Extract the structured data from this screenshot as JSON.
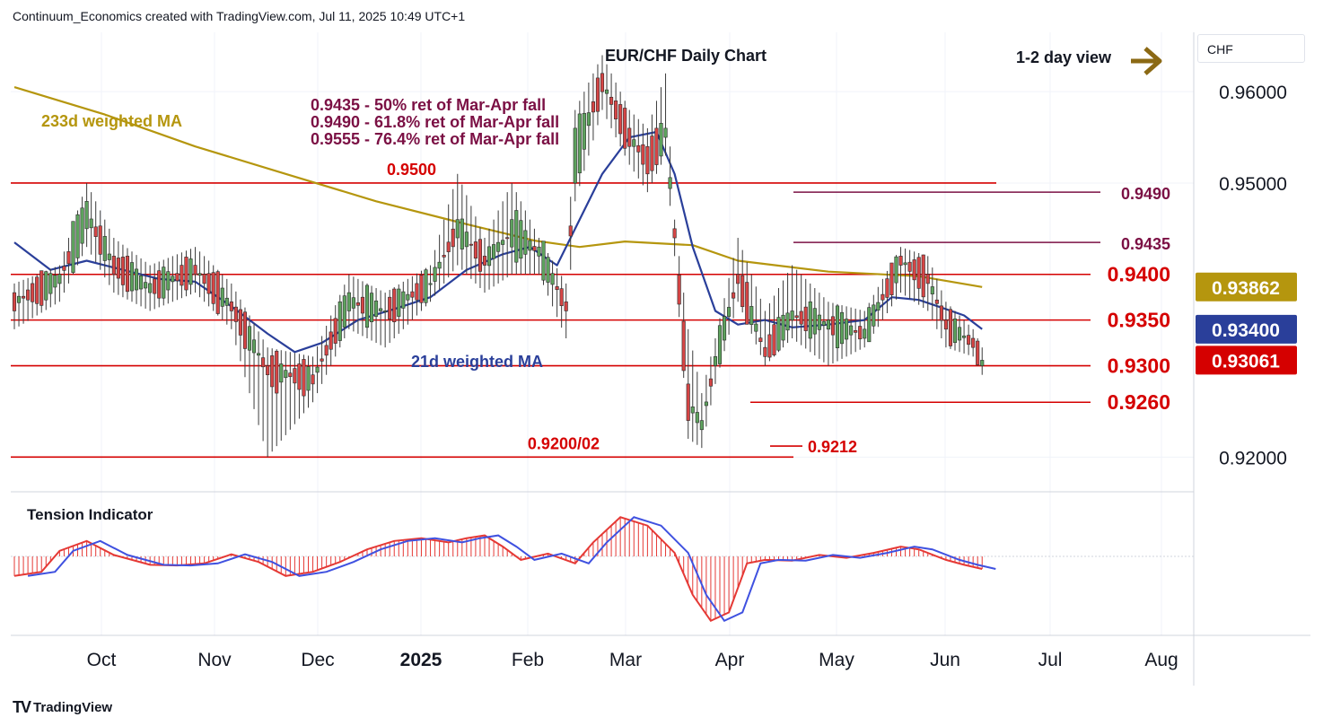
{
  "header": {
    "attribution": "Continuum_Economics created with TradingView.com, Jul 11, 2025 10:49 UTC+1"
  },
  "footer": {
    "brand": "TradingView"
  },
  "currency_box": "CHF",
  "colors": {
    "level_line": "#d50000",
    "fib_line": "#7b1044",
    "ma233": "#b5960e",
    "ma21": "#2a3f9a",
    "bull": "#5ea35e",
    "bear": "#d64545",
    "tension_fill": "#e53935",
    "tension_signal": "#3f51e0",
    "arrow": "#8b6914"
  },
  "chart_data": {
    "type": "candlestick",
    "title": "EUR/CHF Daily Chart",
    "view_label": "1-2 day view",
    "fib_notes": [
      "0.9435 - 50% ret of Mar-Apr fall",
      "0.9490 - 61.8% ret of Mar-Apr fall",
      "0.9555 - 76.4% ret of Mar-Apr fall"
    ],
    "ma_labels": {
      "ma233": "233d weighted MA",
      "ma21": "21d weighted MA"
    },
    "y_range": [
      0.9162,
      0.9665
    ],
    "y_ticks": [
      {
        "value": 0.92,
        "label": "0.92000"
      },
      {
        "value": 0.95,
        "label": "0.95000"
      },
      {
        "value": 0.96,
        "label": "0.96000"
      }
    ],
    "x_ticks": [
      "Oct",
      "Nov",
      "Dec",
      "2025",
      "Feb",
      "Mar",
      "Apr",
      "May",
      "Jun",
      "Jul",
      "Aug"
    ],
    "levels": [
      {
        "value": 0.95,
        "label": "0.9500",
        "style": "red"
      },
      {
        "value": 0.949,
        "label": "0.9490",
        "style": "fib"
      },
      {
        "value": 0.9435,
        "label": "0.9435",
        "style": "fib"
      },
      {
        "value": 0.94,
        "label": "0.9400",
        "style": "red"
      },
      {
        "value": 0.935,
        "label": "0.9350",
        "style": "red"
      },
      {
        "value": 0.93,
        "label": "0.9300",
        "style": "red"
      },
      {
        "value": 0.926,
        "label": "0.9260",
        "style": "red"
      },
      {
        "value": 0.9212,
        "label": "0.9212",
        "style": "red"
      },
      {
        "value": 0.92,
        "label": "0.9200/02",
        "style": "red"
      }
    ],
    "price_tags": [
      {
        "name": "ma233",
        "value": 0.93862,
        "label": "0.93862"
      },
      {
        "name": "ma21",
        "value": 0.934,
        "label": "0.93400"
      },
      {
        "name": "last",
        "value": 0.93061,
        "label": "0.93061"
      }
    ],
    "anchors": [
      {
        "t": 0,
        "o": 0.938,
        "c": 0.936,
        "h": 0.939,
        "l": 0.934
      },
      {
        "t": 10,
        "o": 0.939,
        "c": 0.94,
        "h": 0.941,
        "l": 0.937
      },
      {
        "t": 16,
        "o": 0.945,
        "c": 0.948,
        "h": 0.95,
        "l": 0.943
      },
      {
        "t": 22,
        "o": 0.942,
        "c": 0.94,
        "h": 0.944,
        "l": 0.938
      },
      {
        "t": 30,
        "o": 0.938,
        "c": 0.939,
        "h": 0.941,
        "l": 0.936
      },
      {
        "t": 40,
        "o": 0.941,
        "c": 0.94,
        "h": 0.943,
        "l": 0.938
      },
      {
        "t": 48,
        "o": 0.937,
        "c": 0.936,
        "h": 0.939,
        "l": 0.934
      },
      {
        "t": 56,
        "o": 0.93,
        "c": 0.929,
        "h": 0.932,
        "l": 0.92
      },
      {
        "t": 66,
        "o": 0.929,
        "c": 0.928,
        "h": 0.931,
        "l": 0.926
      },
      {
        "t": 74,
        "o": 0.936,
        "c": 0.938,
        "h": 0.94,
        "l": 0.934
      },
      {
        "t": 82,
        "o": 0.936,
        "c": 0.936,
        "h": 0.938,
        "l": 0.932
      },
      {
        "t": 92,
        "o": 0.939,
        "c": 0.939,
        "h": 0.941,
        "l": 0.937
      },
      {
        "t": 98,
        "o": 0.944,
        "c": 0.946,
        "h": 0.951,
        "l": 0.941
      },
      {
        "t": 104,
        "o": 0.942,
        "c": 0.941,
        "h": 0.944,
        "l": 0.938
      },
      {
        "t": 110,
        "o": 0.943,
        "c": 0.946,
        "h": 0.95,
        "l": 0.94
      },
      {
        "t": 116,
        "o": 0.942,
        "c": 0.943,
        "h": 0.944,
        "l": 0.94
      },
      {
        "t": 122,
        "o": 0.937,
        "c": 0.936,
        "h": 0.939,
        "l": 0.933
      },
      {
        "t": 124,
        "o": 0.95,
        "c": 0.956,
        "h": 0.958,
        "l": 0.948
      },
      {
        "t": 130,
        "o": 0.962,
        "c": 0.96,
        "h": 0.964,
        "l": 0.958
      },
      {
        "t": 136,
        "o": 0.956,
        "c": 0.954,
        "h": 0.958,
        "l": 0.952
      },
      {
        "t": 140,
        "o": 0.954,
        "c": 0.951,
        "h": 0.956,
        "l": 0.949
      },
      {
        "t": 144,
        "o": 0.955,
        "c": 0.956,
        "h": 0.962,
        "l": 0.953
      },
      {
        "t": 146,
        "o": 0.945,
        "c": 0.944,
        "h": 0.946,
        "l": 0.942
      },
      {
        "t": 149,
        "o": 0.928,
        "c": 0.924,
        "h": 0.934,
        "l": 0.922
      },
      {
        "t": 152,
        "o": 0.923,
        "c": 0.924,
        "h": 0.927,
        "l": 0.921
      },
      {
        "t": 155,
        "o": 0.93,
        "c": 0.931,
        "h": 0.933,
        "l": 0.928
      },
      {
        "t": 160,
        "o": 0.94,
        "c": 0.939,
        "h": 0.944,
        "l": 0.937
      },
      {
        "t": 166,
        "o": 0.932,
        "c": 0.931,
        "h": 0.936,
        "l": 0.93
      },
      {
        "t": 172,
        "o": 0.935,
        "c": 0.936,
        "h": 0.941,
        "l": 0.933
      },
      {
        "t": 180,
        "o": 0.934,
        "c": 0.935,
        "h": 0.937,
        "l": 0.93
      },
      {
        "t": 188,
        "o": 0.933,
        "c": 0.934,
        "h": 0.936,
        "l": 0.932
      },
      {
        "t": 196,
        "o": 0.942,
        "c": 0.941,
        "h": 0.943,
        "l": 0.938
      },
      {
        "t": 202,
        "o": 0.94,
        "c": 0.939,
        "h": 0.942,
        "l": 0.936
      },
      {
        "t": 206,
        "o": 0.935,
        "c": 0.934,
        "h": 0.937,
        "l": 0.932
      },
      {
        "t": 212,
        "o": 0.933,
        "c": 0.932,
        "h": 0.934,
        "l": 0.931
      },
      {
        "t": 214,
        "o": 0.93,
        "c": 0.9306,
        "h": 0.932,
        "l": 0.929
      }
    ],
    "ma233_points": [
      [
        0,
        0.9605
      ],
      [
        20,
        0.9575
      ],
      [
        40,
        0.954
      ],
      [
        60,
        0.951
      ],
      [
        80,
        0.948
      ],
      [
        100,
        0.9455
      ],
      [
        115,
        0.9437
      ],
      [
        125,
        0.943
      ],
      [
        135,
        0.9436
      ],
      [
        150,
        0.9432
      ],
      [
        160,
        0.9415
      ],
      [
        180,
        0.9403
      ],
      [
        200,
        0.9398
      ],
      [
        214,
        0.93862
      ]
    ],
    "ma21_points": [
      [
        0,
        0.9435
      ],
      [
        8,
        0.9405
      ],
      [
        16,
        0.9415
      ],
      [
        24,
        0.9405
      ],
      [
        32,
        0.9395
      ],
      [
        40,
        0.9392
      ],
      [
        48,
        0.9365
      ],
      [
        56,
        0.9335
      ],
      [
        62,
        0.9315
      ],
      [
        68,
        0.9325
      ],
      [
        76,
        0.935
      ],
      [
        84,
        0.9362
      ],
      [
        92,
        0.9375
      ],
      [
        100,
        0.9405
      ],
      [
        108,
        0.9422
      ],
      [
        114,
        0.943
      ],
      [
        120,
        0.941
      ],
      [
        124,
        0.945
      ],
      [
        130,
        0.951
      ],
      [
        136,
        0.955
      ],
      [
        142,
        0.9556
      ],
      [
        146,
        0.951
      ],
      [
        150,
        0.943
      ],
      [
        155,
        0.936
      ],
      [
        160,
        0.9345
      ],
      [
        166,
        0.935
      ],
      [
        172,
        0.9342
      ],
      [
        180,
        0.9345
      ],
      [
        188,
        0.935
      ],
      [
        194,
        0.9375
      ],
      [
        200,
        0.9372
      ],
      [
        206,
        0.9362
      ],
      [
        210,
        0.9355
      ],
      [
        214,
        0.934
      ]
    ],
    "tension": {
      "label": "Tension Indicator",
      "range": [
        -1,
        1
      ],
      "points": [
        [
          0,
          -0.28
        ],
        [
          6,
          -0.22
        ],
        [
          10,
          0.08
        ],
        [
          16,
          0.22
        ],
        [
          22,
          0.02
        ],
        [
          30,
          -0.12
        ],
        [
          36,
          -0.13
        ],
        [
          42,
          -0.1
        ],
        [
          48,
          0.03
        ],
        [
          54,
          -0.08
        ],
        [
          60,
          -0.28
        ],
        [
          66,
          -0.22
        ],
        [
          72,
          -0.08
        ],
        [
          78,
          0.1
        ],
        [
          84,
          0.22
        ],
        [
          90,
          0.26
        ],
        [
          96,
          0.2
        ],
        [
          100,
          0.26
        ],
        [
          104,
          0.3
        ],
        [
          108,
          0.14
        ],
        [
          112,
          -0.05
        ],
        [
          118,
          0.04
        ],
        [
          124,
          -0.1
        ],
        [
          128,
          0.2
        ],
        [
          134,
          0.56
        ],
        [
          140,
          0.44
        ],
        [
          146,
          0.05
        ],
        [
          150,
          -0.55
        ],
        [
          154,
          -0.92
        ],
        [
          158,
          -0.8
        ],
        [
          162,
          -0.1
        ],
        [
          166,
          -0.05
        ],
        [
          172,
          -0.06
        ],
        [
          178,
          0.02
        ],
        [
          184,
          -0.02
        ],
        [
          190,
          0.05
        ],
        [
          196,
          0.14
        ],
        [
          200,
          0.1
        ],
        [
          206,
          -0.05
        ],
        [
          210,
          -0.12
        ],
        [
          214,
          -0.18
        ]
      ]
    }
  }
}
